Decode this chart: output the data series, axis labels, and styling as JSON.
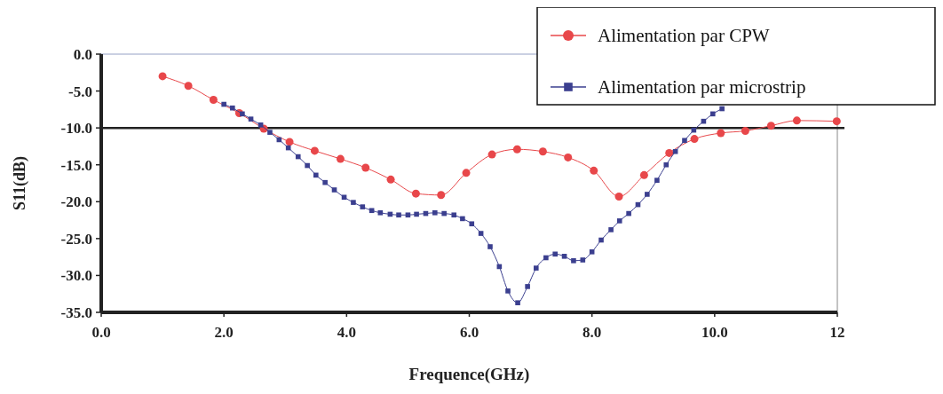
{
  "chart_data": {
    "type": "line",
    "xlabel": "Frequence(GHz)",
    "ylabel": "S11(dB)",
    "xlim": [
      0,
      12
    ],
    "ylim": [
      -35,
      0
    ],
    "xticks": [
      {
        "value": 0,
        "label": "0.0"
      },
      {
        "value": 2,
        "label": "2.0"
      },
      {
        "value": 4,
        "label": "4.0"
      },
      {
        "value": 6,
        "label": "6.0"
      },
      {
        "value": 8,
        "label": "8.0"
      },
      {
        "value": 10,
        "label": "10.0"
      },
      12
    ],
    "yticks": [
      {
        "value": 0,
        "label": "0.0"
      },
      {
        "value": -5,
        "label": "-5.0"
      },
      {
        "value": -10,
        "label": "-10.0"
      },
      {
        "value": -15,
        "label": "-15.0"
      },
      {
        "value": -20,
        "label": "-20.0"
      },
      {
        "value": -25,
        "label": "-25.0"
      },
      {
        "value": -30,
        "label": "-30.0"
      },
      {
        "value": -35,
        "label": "-35.0"
      }
    ],
    "grid": false,
    "legend": "top right",
    "line_style": "solid",
    "ref_lines": [
      {
        "axis": "y",
        "value": -10,
        "color": "#222222"
      }
    ],
    "series": [
      {
        "name": "Alimentation par CPW",
        "color": "#e8474a",
        "marker": "circle",
        "x": [
          1.0,
          1.42,
          1.83,
          2.25,
          2.65,
          3.07,
          3.48,
          3.9,
          4.31,
          4.72,
          5.13,
          5.54,
          5.95,
          6.37,
          6.78,
          7.2,
          7.61,
          8.03,
          8.44,
          8.85,
          9.26,
          9.67,
          10.1,
          10.5,
          10.92,
          11.34,
          11.99
        ],
        "values": [
          -3.0,
          -4.3,
          -6.2,
          -8.0,
          -10.1,
          -11.9,
          -13.1,
          -14.2,
          -15.4,
          -17.0,
          -18.9,
          -19.1,
          -16.1,
          -13.6,
          -12.9,
          -13.2,
          -14.0,
          -15.8,
          -19.3,
          -16.4,
          -13.4,
          -11.5,
          -10.7,
          -10.4,
          -9.7,
          -9.0,
          -9.1
        ]
      },
      {
        "name": "Alimentation par microstrip",
        "color": "#3b3f8f",
        "marker": "square",
        "x": [
          2.0,
          2.14,
          2.3,
          2.44,
          2.6,
          2.75,
          2.9,
          3.05,
          3.21,
          3.36,
          3.5,
          3.65,
          3.8,
          3.96,
          4.11,
          4.26,
          4.41,
          4.55,
          4.71,
          4.85,
          5.0,
          5.14,
          5.29,
          5.44,
          5.59,
          5.75,
          5.89,
          6.04,
          6.19,
          6.34,
          6.49,
          6.63,
          6.79,
          6.95,
          7.09,
          7.25,
          7.4,
          7.55,
          7.7,
          7.85,
          8.0,
          8.15,
          8.31,
          8.45,
          8.6,
          8.75,
          8.9,
          9.06,
          9.21,
          9.36,
          9.51,
          9.66,
          9.82,
          9.97,
          10.12
        ],
        "values": [
          -6.8,
          -7.3,
          -8.1,
          -8.8,
          -9.6,
          -10.6,
          -11.6,
          -12.7,
          -13.9,
          -15.1,
          -16.4,
          -17.4,
          -18.4,
          -19.4,
          -20.1,
          -20.7,
          -21.2,
          -21.5,
          -21.7,
          -21.8,
          -21.8,
          -21.7,
          -21.6,
          -21.5,
          -21.6,
          -21.8,
          -22.3,
          -23.0,
          -24.3,
          -26.1,
          -28.8,
          -32.1,
          -33.7,
          -31.5,
          -29.0,
          -27.6,
          -27.1,
          -27.4,
          -28.0,
          -27.9,
          -26.8,
          -25.2,
          -23.8,
          -22.6,
          -21.6,
          -20.4,
          -19.0,
          -17.1,
          -15.0,
          -13.2,
          -11.7,
          -10.3,
          -9.1,
          -8.1,
          -7.4
        ]
      }
    ]
  }
}
